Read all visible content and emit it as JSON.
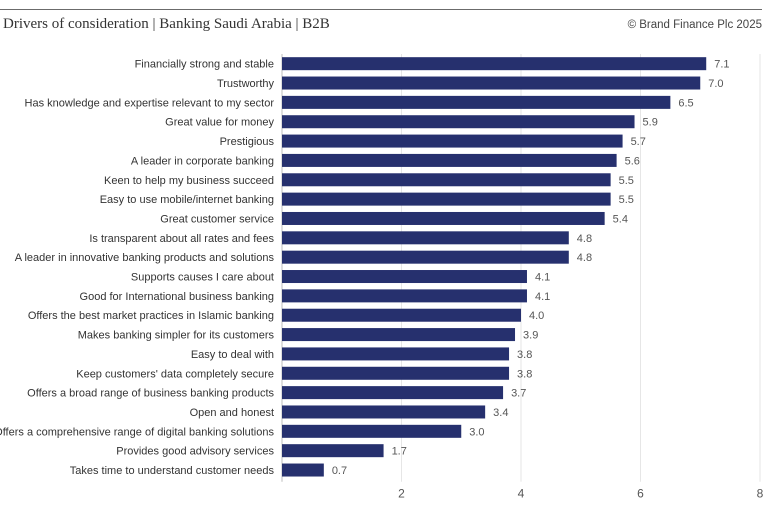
{
  "header": {
    "title": "Drivers of consideration | Banking Saudi Arabia | B2B",
    "copyright": "© Brand Finance Plc 2025"
  },
  "colors": {
    "bar": "#26306e",
    "grid": "#e6e6e6",
    "axis": "#bdbdbd"
  },
  "chart_data": {
    "type": "bar",
    "orientation": "horizontal",
    "title": "Drivers of consideration | Banking Saudi Arabia | B2B",
    "categories": [
      "Financially strong and stable",
      "Trustworthy",
      "Has knowledge and expertise relevant to my sector",
      "Great value for money",
      "Prestigious",
      "A leader in corporate banking",
      "Keen to help my  business succeed",
      "Easy to use mobile/internet banking",
      "Great customer service",
      "Is transparent about all rates and fees",
      "A leader in innovative banking products and solutions",
      "Supports causes I care about",
      "Good for International business banking",
      "Offers the best market practices in Islamic banking",
      "Makes banking simpler for its customers",
      "Easy to deal with",
      "Keep customers' data completely secure",
      "Offers a broad range of business banking products",
      "Open and honest",
      "Offers a comprehensive range of digital banking solutions",
      "Provides good advisory services",
      "Takes time to understand customer needs"
    ],
    "values": [
      7.1,
      7.0,
      6.5,
      5.9,
      5.7,
      5.6,
      5.5,
      5.5,
      5.4,
      4.8,
      4.8,
      4.1,
      4.1,
      4.0,
      3.9,
      3.8,
      3.8,
      3.7,
      3.4,
      3.0,
      1.7,
      0.7
    ],
    "value_labels": [
      "7.1",
      "7.0",
      "6.5",
      "5.9",
      "5.7",
      "5.6",
      "5.5",
      "5.5",
      "5.4",
      "4.8",
      "4.8",
      "4.1",
      "4.1",
      "4.0",
      "3.9",
      "3.8",
      "3.8",
      "3.7",
      "3.4",
      "3.0",
      "1.7",
      "0.7"
    ],
    "xlim": [
      0,
      8
    ],
    "xticks": [
      2,
      4,
      6,
      8
    ],
    "xtick_labels": [
      "2",
      "4",
      "6",
      "8"
    ],
    "grid": true,
    "legend": "none"
  }
}
